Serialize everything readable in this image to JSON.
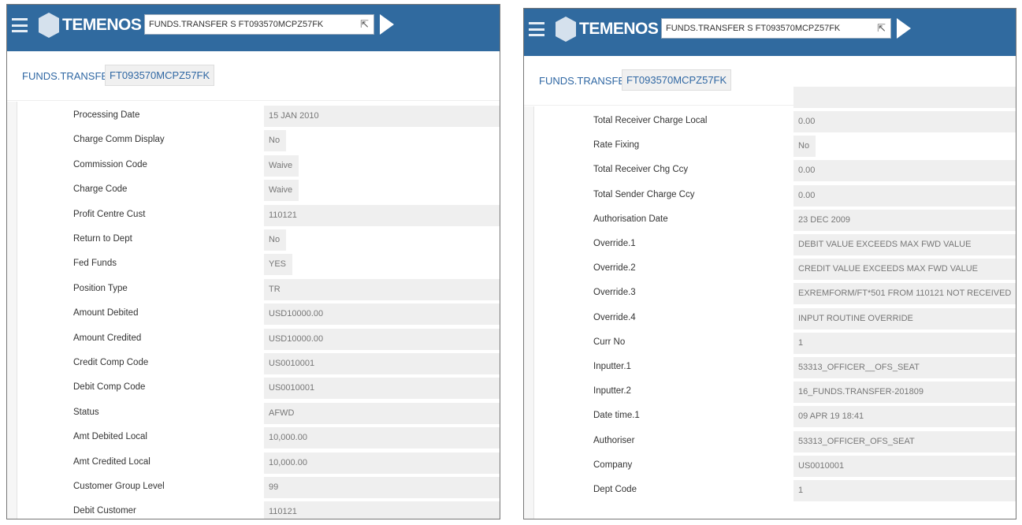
{
  "app": {
    "brand": "TEMENOS",
    "command": "FUNDS.TRANSFER S FT093570MCPZ57FK",
    "breadcrumb_app": "FUNDS.TRANSFER",
    "breadcrumb_id": "FT093570MCPZ57FK",
    "header_color": "#306a9f",
    "icons": [
      "hamburger-menu-icon",
      "temenos-logo-icon",
      "expand-arrow-icon",
      "play-run-icon"
    ]
  },
  "panels": [
    {
      "fields": [
        {
          "label": "Processing Date",
          "value": "15 JAN 2010"
        },
        {
          "label": "Charge Comm Display",
          "value": "No"
        },
        {
          "label": "Commission Code",
          "value": "Waive"
        },
        {
          "label": "Charge Code",
          "value": "Waive"
        },
        {
          "label": "Profit Centre Cust",
          "value": "110121"
        },
        {
          "label": "Return to Dept",
          "value": "No"
        },
        {
          "label": "Fed Funds",
          "value": "YES"
        },
        {
          "label": "Position Type",
          "value": "TR"
        },
        {
          "label": "Amount Debited",
          "value": "USD10000.00"
        },
        {
          "label": "Amount Credited",
          "value": "USD10000.00"
        },
        {
          "label": "Credit Comp Code",
          "value": "US0010001"
        },
        {
          "label": "Debit Comp Code",
          "value": "US0010001"
        },
        {
          "label": "Status",
          "value": "AFWD"
        },
        {
          "label": "Amt Debited Local",
          "value": "10,000.00"
        },
        {
          "label": "Amt Credited Local",
          "value": "10,000.00"
        },
        {
          "label": "Customer Group Level",
          "value": "99"
        },
        {
          "label": "Debit Customer",
          "value": "110121"
        }
      ]
    },
    {
      "fields": [
        {
          "label": "Total Receiver Charge Local",
          "value": "0.00"
        },
        {
          "label": "Rate Fixing",
          "value": "No"
        },
        {
          "label": "Total Receiver Chg Ccy",
          "value": "0.00"
        },
        {
          "label": "Total Sender Charge Ccy",
          "value": "0.00"
        },
        {
          "label": "Authorisation Date",
          "value": "23 DEC 2009"
        },
        {
          "label": "Override.1",
          "value": "DEBIT VALUE EXCEEDS MAX FWD VALUE"
        },
        {
          "label": "Override.2",
          "value": "CREDIT VALUE EXCEEDS MAX FWD VALUE"
        },
        {
          "label": "Override.3",
          "value": "EXREMFORM/FT*501 FROM 110121 NOT RECEIVED"
        },
        {
          "label": "Override.4",
          "value": "INPUT ROUTINE OVERRIDE"
        },
        {
          "label": "Curr No",
          "value": "1"
        },
        {
          "label": "Inputter.1",
          "value": "53313_OFFICER__OFS_SEAT"
        },
        {
          "label": "Inputter.2",
          "value": "16_FUNDS.TRANSFER-201809"
        },
        {
          "label": "Date time.1",
          "value": "09 APR 19 18:41"
        },
        {
          "label": "Authoriser",
          "value": "53313_OFFICER_OFS_SEAT"
        },
        {
          "label": "Company",
          "value": "US0010001"
        },
        {
          "label": "Dept Code",
          "value": "1"
        }
      ]
    }
  ]
}
